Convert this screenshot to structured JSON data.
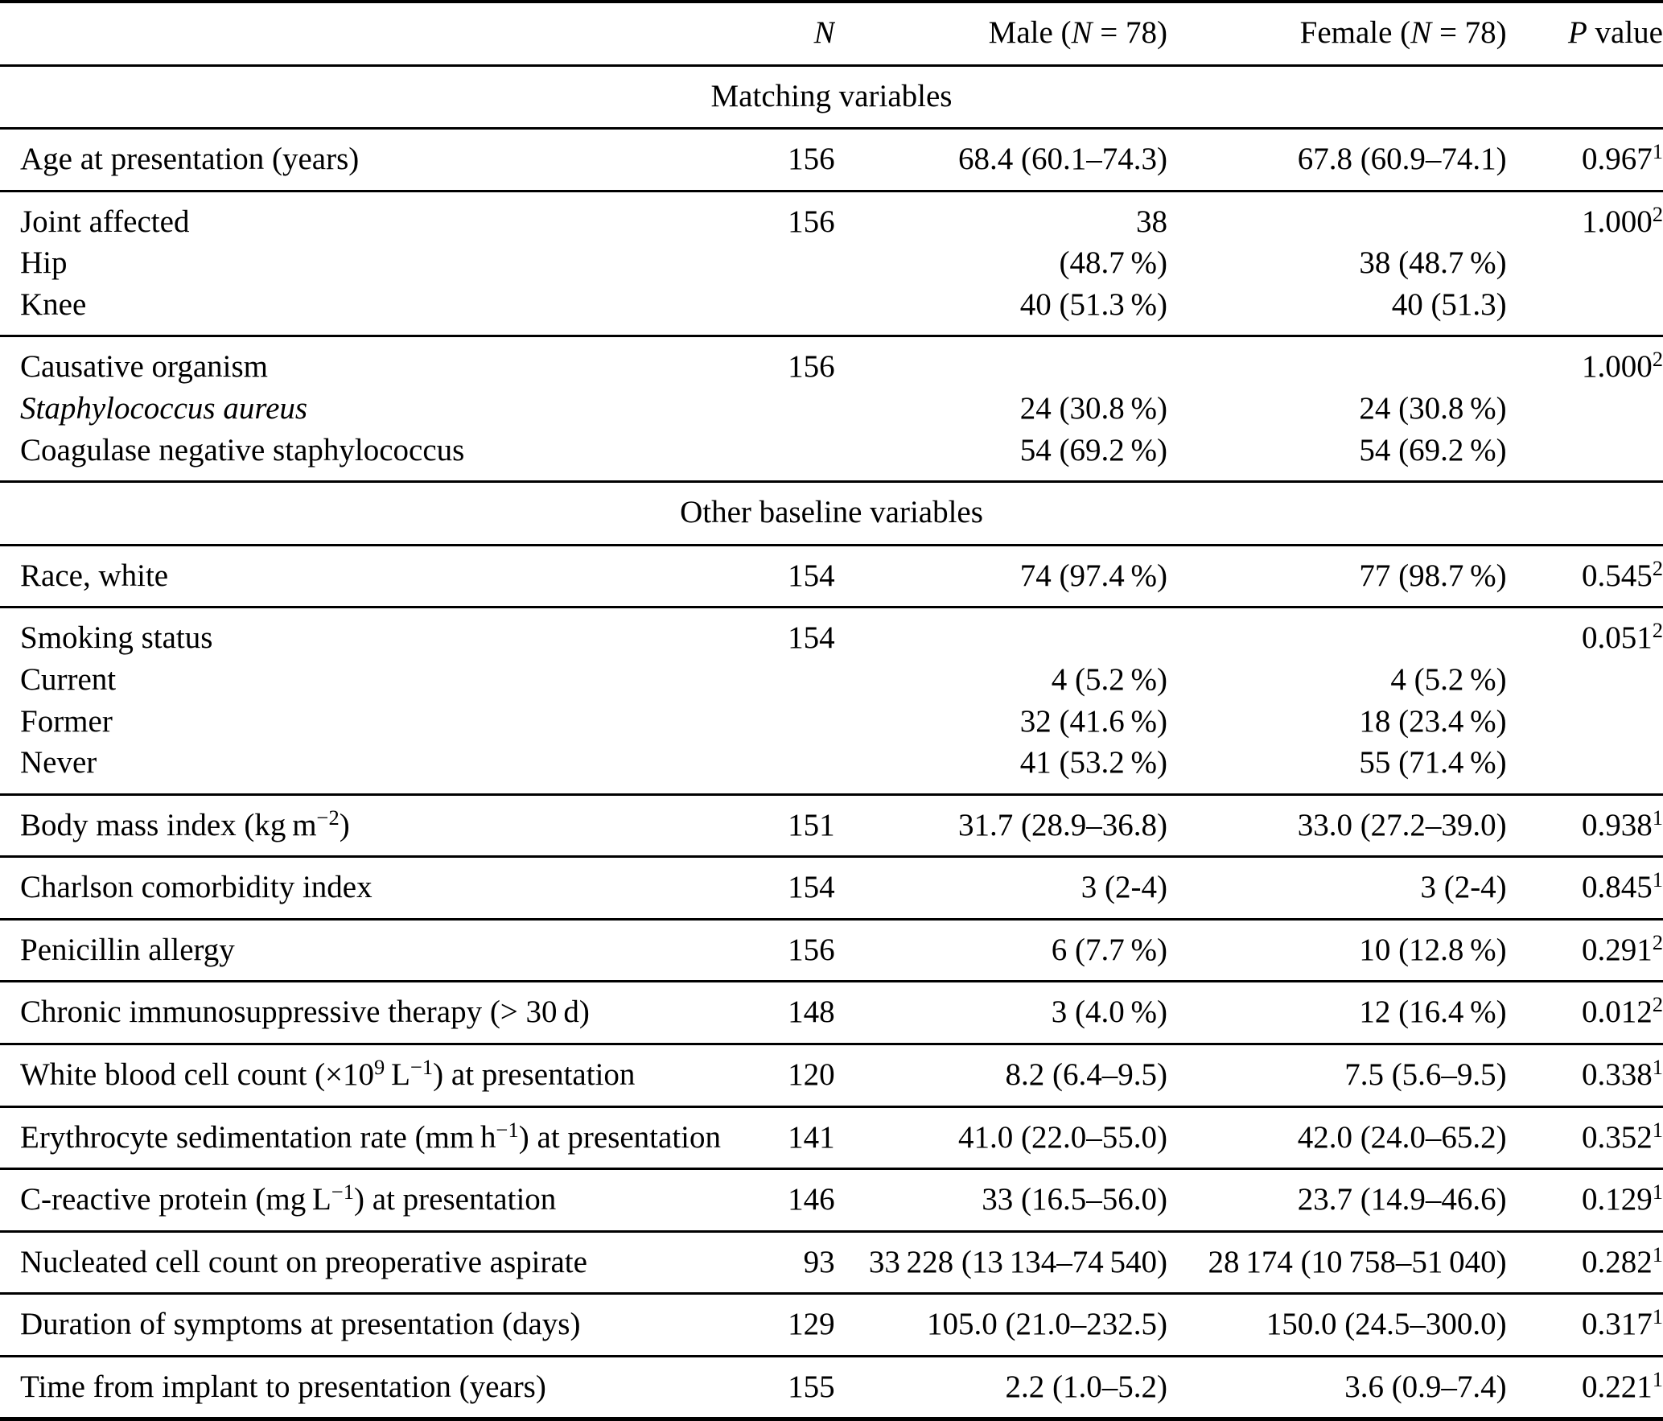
{
  "header": {
    "n": "N",
    "male": {
      "pre": "Male (",
      "n": "N",
      "post": " = 78)"
    },
    "female": {
      "pre": "Female (",
      "n": "N",
      "post": " = 78)"
    },
    "p": {
      "p": "P",
      "post": " value"
    }
  },
  "sections": [
    {
      "title": "Matching variables",
      "groups": [
        {
          "rows": [
            {
              "label": "Age at presentation (years)",
              "n": "156",
              "male": "68.4 (60.1–74.3)",
              "female": "67.8 (60.9–74.1)",
              "p": "0.967",
              "p_sup": "1"
            }
          ]
        },
        {
          "rows": [
            {
              "label": "Joint affected",
              "n": "156",
              "male": "38",
              "p": "1.000",
              "p_sup": "2"
            },
            {
              "label": "Hip",
              "male": "(48.7 %)",
              "female": "38 (48.7 %)"
            },
            {
              "label": "Knee",
              "male": "40 (51.3 %)",
              "female": "40 (51.3)"
            }
          ]
        },
        {
          "rows": [
            {
              "label": "Causative organism",
              "n": "156",
              "p": "1.000",
              "p_sup": "2"
            },
            {
              "label": "Staphylococcus aureus",
              "male": "24 (30.8 %)",
              "female": "24 (30.8 %)"
            },
            {
              "label": "Coagulase negative staphylococcus",
              "male": "54 (69.2 %)",
              "female": "54 (69.2 %)"
            }
          ]
        }
      ]
    },
    {
      "title": "Other baseline variables",
      "groups": [
        {
          "rows": [
            {
              "label": "Race, white",
              "n": "154",
              "male": "74 (97.4 %)",
              "female": "77 (98.7 %)",
              "p": "0.545",
              "p_sup": "2"
            }
          ]
        },
        {
          "rows": [
            {
              "label": "Smoking status",
              "n": "154",
              "p": "0.051",
              "p_sup": "2"
            },
            {
              "label": "Current",
              "male": "4 (5.2 %)",
              "female": "4 (5.2 %)"
            },
            {
              "label": "Former",
              "male": "32 (41.6 %)",
              "female": "18 (23.4 %)"
            },
            {
              "label": "Never",
              "male": "41 (53.2 %)",
              "female": "55 (71.4 %)"
            }
          ]
        },
        {
          "rows": [
            {
              "label_parts": [
                "Body mass index (kg m",
                "−2",
                ")"
              ],
              "n": "151",
              "male": "31.7 (28.9–36.8)",
              "female": "33.0 (27.2–39.0)",
              "p": "0.938",
              "p_sup": "1"
            }
          ]
        },
        {
          "rows": [
            {
              "label": "Charlson comorbidity index",
              "n": "154",
              "male": "3 (2-4)",
              "female": "3 (2-4)",
              "p": "0.845",
              "p_sup": "1"
            }
          ]
        },
        {
          "rows": [
            {
              "label": "Penicillin allergy",
              "n": "156",
              "male": "6 (7.7 %)",
              "female": "10 (12.8 %)",
              "p": "0.291",
              "p_sup": "2"
            }
          ]
        },
        {
          "rows": [
            {
              "label": "Chronic immunosuppressive therapy (> 30 d)",
              "n": "148",
              "male": "3 (4.0 %)",
              "female": "12 (16.4 %)",
              "p": "0.012",
              "p_sup": "2"
            }
          ]
        },
        {
          "rows": [
            {
              "label_parts": [
                "White blood cell count (×10",
                "9",
                " L",
                "−1",
                ") at presentation"
              ],
              "n": "120",
              "male": "8.2 (6.4–9.5)",
              "female": "7.5 (5.6–9.5)",
              "p": "0.338",
              "p_sup": "1"
            }
          ]
        },
        {
          "rows": [
            {
              "label_parts": [
                "Erythrocyte sedimentation rate (mm h",
                "−1",
                ") at presentation"
              ],
              "n": "141",
              "male": "41.0 (22.0–55.0)",
              "female": "42.0 (24.0–65.2)",
              "p": "0.352",
              "p_sup": "1"
            }
          ]
        },
        {
          "rows": [
            {
              "label_parts": [
                "C-reactive protein (mg L",
                "−1",
                ") at presentation"
              ],
              "n": "146",
              "male": "33 (16.5–56.0)",
              "female": "23.7 (14.9–46.6)",
              "p": "0.129",
              "p_sup": "1"
            }
          ]
        },
        {
          "rows": [
            {
              "label": "Nucleated cell count on preoperative aspirate",
              "n": "93",
              "male": "33 228 (13 134–74 540)",
              "female": "28 174 (10 758–51 040)",
              "p": "0.282",
              "p_sup": "1"
            }
          ]
        },
        {
          "rows": [
            {
              "label": "Duration of symptoms at presentation (days)",
              "n": "129",
              "male": "105.0 (21.0–232.5)",
              "female": "150.0 (24.5–300.0)",
              "p": "0.317",
              "p_sup": "1"
            }
          ]
        },
        {
          "rows": [
            {
              "label": "Time from implant to presentation (years)",
              "n": "155",
              "male": "2.2 (1.0–5.2)",
              "female": "3.6 (0.9–7.4)",
              "p": "0.221",
              "p_sup": "1"
            }
          ]
        }
      ]
    }
  ]
}
